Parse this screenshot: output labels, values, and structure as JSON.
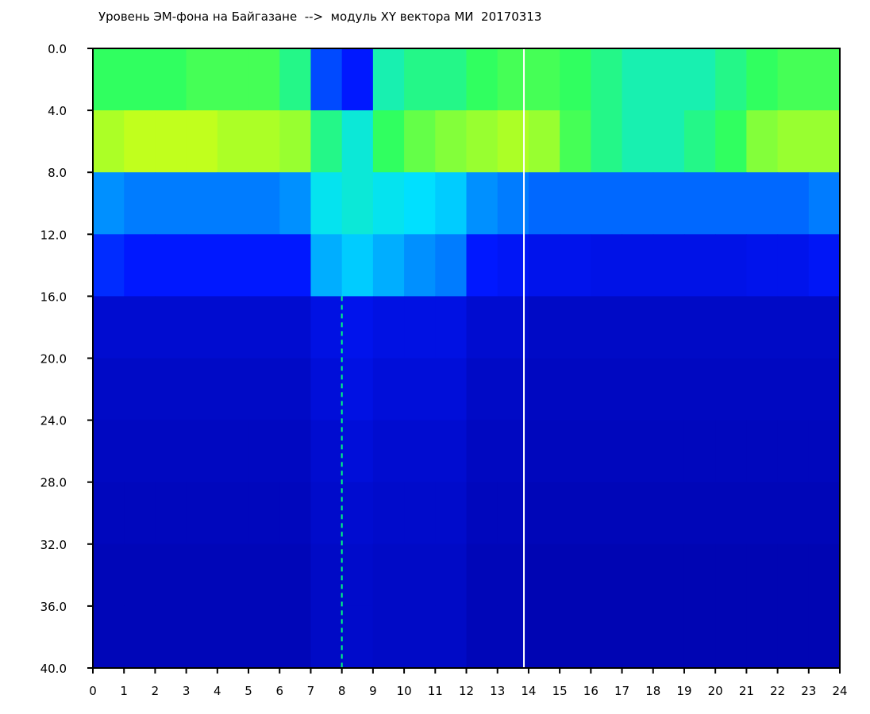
{
  "chart_data": {
    "type": "heatmap",
    "title": "Уровень ЭМ-фона на Байгазане  -->  модуль XY вектора МИ  20170313",
    "xlabel": "",
    "ylabel": "",
    "xlim": [
      0,
      24
    ],
    "ylim": [
      0,
      40
    ],
    "y_inverted": true,
    "x_ticks": [
      "0",
      "1",
      "2",
      "3",
      "4",
      "5",
      "6",
      "7",
      "8",
      "9",
      "10",
      "11",
      "12",
      "13",
      "14",
      "15",
      "16",
      "17",
      "18",
      "19",
      "20",
      "21",
      "22",
      "23",
      "24"
    ],
    "y_ticks": [
      "0.0",
      "4.0",
      "8.0",
      "12.0",
      "16.0",
      "20.0",
      "24.0",
      "28.0",
      "32.0",
      "36.0",
      "40.0"
    ],
    "colormap": [
      "#0000a0",
      "#0018ff",
      "#00e0ff",
      "#30ff60",
      "#ffff00",
      "#ff0000"
    ],
    "y_bins": [
      [
        0,
        4
      ],
      [
        4,
        8
      ],
      [
        8,
        12
      ],
      [
        12,
        16
      ],
      [
        16,
        20
      ],
      [
        20,
        24
      ],
      [
        24,
        28
      ],
      [
        28,
        32
      ],
      [
        32,
        36
      ],
      [
        36,
        40
      ]
    ],
    "intensity": [
      [
        0.6,
        0.6,
        0.6,
        0.62,
        0.62,
        0.62,
        0.55,
        0.25,
        0.2,
        0.5,
        0.55,
        0.55,
        0.6,
        0.62,
        0.62,
        0.6,
        0.55,
        0.5,
        0.5,
        0.5,
        0.55,
        0.6,
        0.62,
        0.62
      ],
      [
        0.72,
        0.74,
        0.74,
        0.74,
        0.72,
        0.72,
        0.7,
        0.55,
        0.45,
        0.6,
        0.65,
        0.68,
        0.7,
        0.72,
        0.7,
        0.62,
        0.55,
        0.5,
        0.5,
        0.55,
        0.6,
        0.68,
        0.7,
        0.7
      ],
      [
        0.32,
        0.3,
        0.3,
        0.3,
        0.3,
        0.3,
        0.32,
        0.42,
        0.45,
        0.42,
        0.4,
        0.38,
        0.32,
        0.3,
        0.28,
        0.28,
        0.28,
        0.28,
        0.28,
        0.28,
        0.28,
        0.28,
        0.28,
        0.3
      ],
      [
        0.22,
        0.2,
        0.2,
        0.2,
        0.2,
        0.2,
        0.2,
        0.35,
        0.38,
        0.35,
        0.32,
        0.3,
        0.2,
        0.18,
        0.16,
        0.16,
        0.15,
        0.15,
        0.15,
        0.15,
        0.15,
        0.16,
        0.16,
        0.18
      ],
      [
        0.1,
        0.1,
        0.1,
        0.1,
        0.1,
        0.1,
        0.1,
        0.14,
        0.16,
        0.14,
        0.14,
        0.14,
        0.1,
        0.1,
        0.08,
        0.08,
        0.08,
        0.08,
        0.08,
        0.08,
        0.08,
        0.08,
        0.08,
        0.08
      ],
      [
        0.08,
        0.08,
        0.08,
        0.08,
        0.08,
        0.08,
        0.08,
        0.12,
        0.14,
        0.12,
        0.12,
        0.12,
        0.08,
        0.08,
        0.07,
        0.07,
        0.07,
        0.07,
        0.07,
        0.07,
        0.07,
        0.07,
        0.07,
        0.07
      ],
      [
        0.07,
        0.07,
        0.07,
        0.07,
        0.07,
        0.07,
        0.07,
        0.1,
        0.12,
        0.1,
        0.1,
        0.1,
        0.07,
        0.07,
        0.06,
        0.06,
        0.06,
        0.06,
        0.06,
        0.06,
        0.06,
        0.06,
        0.06,
        0.06
      ],
      [
        0.06,
        0.06,
        0.06,
        0.06,
        0.06,
        0.06,
        0.06,
        0.09,
        0.1,
        0.09,
        0.09,
        0.09,
        0.06,
        0.06,
        0.05,
        0.05,
        0.05,
        0.05,
        0.05,
        0.05,
        0.05,
        0.05,
        0.05,
        0.05
      ],
      [
        0.05,
        0.05,
        0.05,
        0.05,
        0.05,
        0.05,
        0.05,
        0.08,
        0.09,
        0.08,
        0.08,
        0.08,
        0.05,
        0.05,
        0.04,
        0.04,
        0.04,
        0.04,
        0.04,
        0.04,
        0.04,
        0.04,
        0.04,
        0.04
      ],
      [
        0.05,
        0.05,
        0.05,
        0.05,
        0.05,
        0.05,
        0.05,
        0.08,
        0.09,
        0.08,
        0.08,
        0.08,
        0.05,
        0.05,
        0.04,
        0.04,
        0.04,
        0.04,
        0.04,
        0.04,
        0.04,
        0.04,
        0.04,
        0.04
      ]
    ],
    "vertical_markers": [
      {
        "x": 8.0,
        "style": "dashed"
      },
      {
        "x": 13.85,
        "style": "solid",
        "color": "#ffffff"
      }
    ],
    "grid": false,
    "legend": "none"
  }
}
